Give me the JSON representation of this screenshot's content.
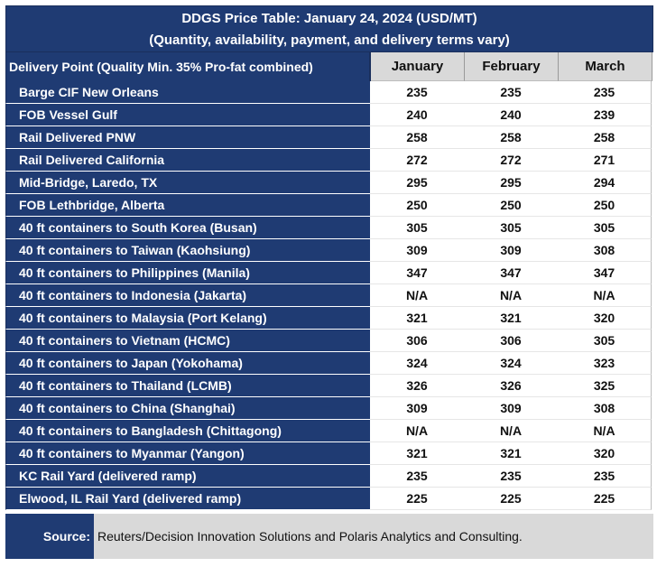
{
  "title_line1": "DDGS Price Table: January 24, 2024 (USD/MT)",
  "title_line2": "(Quantity, availability, payment, and delivery terms vary)",
  "header": {
    "first": "Delivery Point (Quality Min. 35% Pro-fat combined)",
    "months": [
      "January",
      "February",
      "March"
    ]
  },
  "rows": [
    {
      "label": "Barge CIF New Orleans",
      "values": [
        "235",
        "235",
        "235"
      ]
    },
    {
      "label": "FOB Vessel Gulf",
      "values": [
        "240",
        "240",
        "239"
      ]
    },
    {
      "label": "Rail Delivered PNW",
      "values": [
        "258",
        "258",
        "258"
      ]
    },
    {
      "label": "Rail Delivered California",
      "values": [
        "272",
        "272",
        "271"
      ]
    },
    {
      "label": "Mid-Bridge, Laredo, TX",
      "values": [
        "295",
        "295",
        "294"
      ]
    },
    {
      "label": "FOB Lethbridge, Alberta",
      "values": [
        "250",
        "250",
        "250"
      ]
    },
    {
      "label": "40 ft containers to South Korea (Busan)",
      "values": [
        "305",
        "305",
        "305"
      ]
    },
    {
      "label": "40 ft containers to Taiwan (Kaohsiung)",
      "values": [
        "309",
        "309",
        "308"
      ]
    },
    {
      "label": "40 ft containers to Philippines (Manila)",
      "values": [
        "347",
        "347",
        "347"
      ]
    },
    {
      "label": "40 ft containers to Indonesia (Jakarta)",
      "values": [
        "N/A",
        "N/A",
        "N/A"
      ]
    },
    {
      "label": "40 ft containers to Malaysia (Port Kelang)",
      "values": [
        "321",
        "321",
        "320"
      ]
    },
    {
      "label": "40 ft containers to Vietnam (HCMC)",
      "values": [
        "306",
        "306",
        "305"
      ]
    },
    {
      "label": "40 ft containers to Japan (Yokohama)",
      "values": [
        "324",
        "324",
        "323"
      ]
    },
    {
      "label": "40 ft containers to Thailand (LCMB)",
      "values": [
        "326",
        "326",
        "325"
      ]
    },
    {
      "label": "40 ft containers to China (Shanghai)",
      "values": [
        "309",
        "309",
        "308"
      ]
    },
    {
      "label": "40 ft containers to Bangladesh (Chittagong)",
      "values": [
        "N/A",
        "N/A",
        "N/A"
      ]
    },
    {
      "label": "40 ft containers to Myanmar (Yangon)",
      "values": [
        "321",
        "321",
        "320"
      ]
    },
    {
      "label": "KC Rail Yard (delivered ramp)",
      "values": [
        "235",
        "235",
        "235"
      ]
    },
    {
      "label": "Elwood, IL Rail Yard (delivered ramp)",
      "values": [
        "225",
        "225",
        "225"
      ]
    }
  ],
  "source_label": "Source:",
  "source_text": "Reuters/Decision Innovation Solutions and Polaris Analytics and Consulting.",
  "colors": {
    "navy": "#1f3b73",
    "gray": "#d9d9d9"
  }
}
